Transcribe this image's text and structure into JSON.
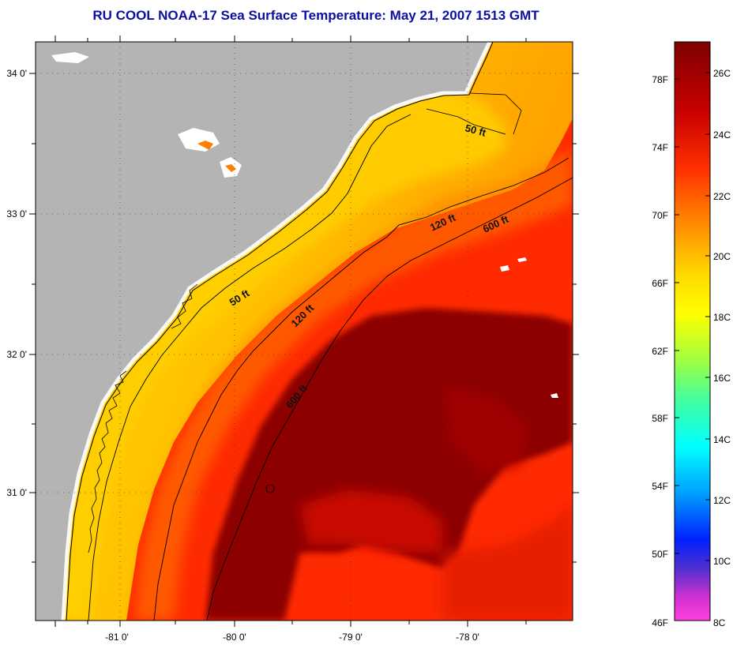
{
  "title": "RU COOL  NOAA-17  Sea Surface Temperature:  May 21, 2007 1513 GMT",
  "map": {
    "lat_labels": [
      "34 0'",
      "33 0'",
      "32 0'",
      "31 0'"
    ],
    "lon_labels": [
      "-81 0'",
      "-80 0'",
      "-79 0'",
      "-78 0'"
    ],
    "contours": [
      {
        "label": "50 ft"
      },
      {
        "label": "50 ft"
      },
      {
        "label": "120 ft"
      },
      {
        "label": "120 ft"
      },
      {
        "label": "600 ft"
      },
      {
        "label": "600 ft"
      }
    ]
  },
  "colorbar": {
    "fahrenheit_labels": [
      "78F",
      "74F",
      "70F",
      "66F",
      "62F",
      "58F",
      "54F",
      "50F",
      "46F"
    ],
    "celsius_labels": [
      "26C",
      "24C",
      "22C",
      "20C",
      "18C",
      "16C",
      "14C",
      "12C",
      "10C",
      "8C"
    ]
  },
  "colors": {
    "land": "#b4b4b4",
    "title": "#0b0fa0",
    "warm_core": "#8c0000",
    "shelf_yellow": "#ffd700"
  }
}
